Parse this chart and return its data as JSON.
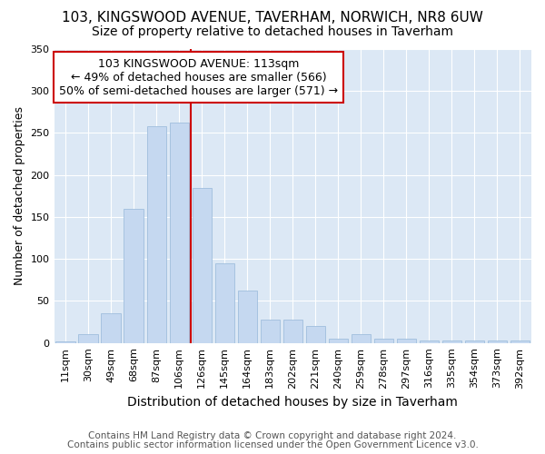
{
  "title1": "103, KINGSWOOD AVENUE, TAVERHAM, NORWICH, NR8 6UW",
  "title2": "Size of property relative to detached houses in Taverham",
  "xlabel": "Distribution of detached houses by size in Taverham",
  "ylabel": "Number of detached properties",
  "categories": [
    "11sqm",
    "30sqm",
    "49sqm",
    "68sqm",
    "87sqm",
    "106sqm",
    "126sqm",
    "145sqm",
    "164sqm",
    "183sqm",
    "202sqm",
    "221sqm",
    "240sqm",
    "259sqm",
    "278sqm",
    "297sqm",
    "316sqm",
    "335sqm",
    "354sqm",
    "373sqm",
    "392sqm"
  ],
  "values": [
    2,
    10,
    35,
    160,
    258,
    262,
    185,
    95,
    62,
    28,
    28,
    20,
    5,
    11,
    5,
    5,
    3,
    3,
    3,
    3,
    3
  ],
  "bar_color": "#c5d8f0",
  "bar_edge_color": "#a0bedd",
  "vline_x": 5.5,
  "vline_color": "#cc0000",
  "annotation_text": "103 KINGSWOOD AVENUE: 113sqm\n← 49% of detached houses are smaller (566)\n50% of semi-detached houses are larger (571) →",
  "annotation_box_color": "#ffffff",
  "annotation_box_edge_color": "#cc0000",
  "figure_bg_color": "#ffffff",
  "plot_bg_color": "#dce8f5",
  "footer1": "Contains HM Land Registry data © Crown copyright and database right 2024.",
  "footer2": "Contains public sector information licensed under the Open Government Licence v3.0.",
  "ylim": [
    0,
    350
  ],
  "title1_fontsize": 11,
  "title2_fontsize": 10,
  "xlabel_fontsize": 10,
  "ylabel_fontsize": 9,
  "tick_fontsize": 8,
  "annotation_fontsize": 9,
  "footer_fontsize": 7.5
}
